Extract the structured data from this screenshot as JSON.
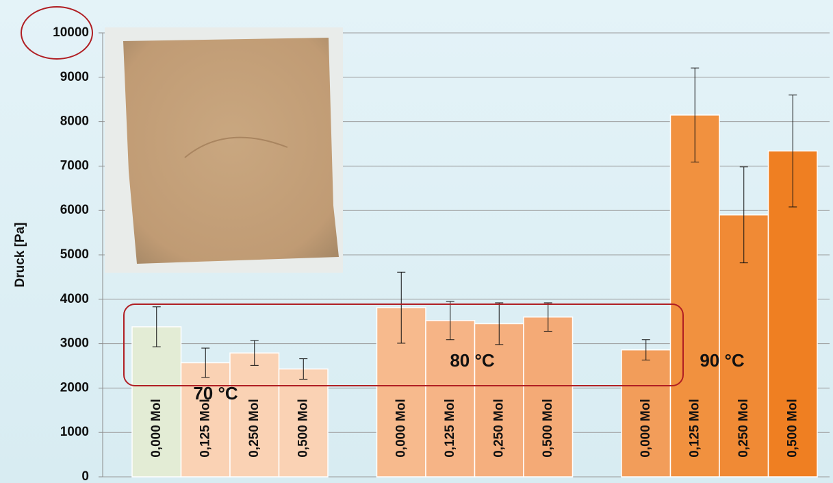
{
  "chart_data": {
    "type": "bar",
    "y_label": "Druck [Pa]",
    "categories": [
      "0,000 Mol",
      "0,125 Mol",
      "0,250 Mol",
      "0,500 Mol",
      null,
      "0,000 Mol",
      "0,125 Mol",
      "0,250 Mol",
      "0,500 Mol",
      null,
      "0,000 Mol",
      "0,125 Mol",
      "0,250 Mol",
      "0,500 Mol"
    ],
    "values": [
      3380,
      2570,
      2790,
      2430,
      null,
      3810,
      3520,
      3450,
      3600,
      null,
      2860,
      8150,
      5900,
      7340
    ],
    "errors": [
      450,
      330,
      280,
      230,
      null,
      800,
      430,
      470,
      320,
      null,
      230,
      1060,
      1080,
      1260
    ],
    "colors": [
      "#e3ecd5",
      "#fad2b4",
      "#fad2b4",
      "#fad2b4",
      null,
      "#f7ba8d",
      "#f6b486",
      "#f5af7e",
      "#f4aa76",
      null,
      "#f29d5a",
      "#f1913f",
      "#f08a35",
      "#ef7f22"
    ],
    "group_labels": [
      "70 °C",
      "80 °C",
      "90 °C"
    ],
    "ylim": [
      0,
      10000
    ],
    "yticks": [
      0,
      1000,
      2000,
      3000,
      4000,
      5000,
      6000,
      7000,
      8000,
      9000,
      10000
    ],
    "grid": true
  }
}
